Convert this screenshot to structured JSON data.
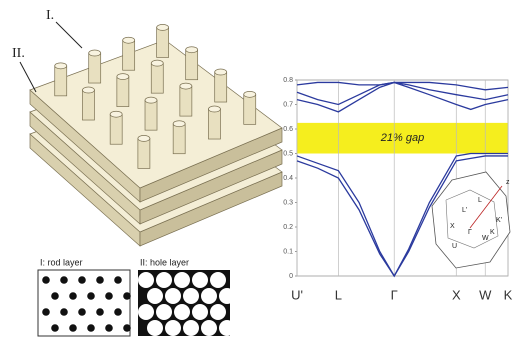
{
  "chart_data": {
    "type": "line",
    "x": [
      0,
      0.5,
      1,
      1.5,
      2,
      2.35,
      2.7,
      3.2,
      3.85,
      4.2,
      4.55,
      5.1
    ],
    "series": [
      {
        "color": "#2b3a9e",
        "values": [
          0.47,
          0.44,
          0.4,
          0.27,
          0.09,
          0,
          0.1,
          0.28,
          0.47,
          0.48,
          0.49,
          0.49
        ]
      },
      {
        "color": "#2b3a9e",
        "values": [
          0.49,
          0.46,
          0.43,
          0.3,
          0.1,
          0,
          0.11,
          0.3,
          0.49,
          0.5,
          0.5,
          0.5
        ]
      },
      {
        "color": "#2b3a9e",
        "values": [
          0.72,
          0.7,
          0.67,
          0.72,
          0.77,
          0.79,
          0.77,
          0.74,
          0.7,
          0.68,
          0.7,
          0.72
        ]
      },
      {
        "color": "#2b3a9e",
        "values": [
          0.75,
          0.72,
          0.7,
          0.74,
          0.78,
          0.79,
          0.78,
          0.76,
          0.74,
          0.73,
          0.72,
          0.74
        ]
      },
      {
        "color": "#2b3a9e",
        "values": [
          0.78,
          0.79,
          0.79,
          0.78,
          0.78,
          0.79,
          0.79,
          0.79,
          0.78,
          0.77,
          0.76,
          0.77
        ]
      }
    ],
    "xlim": [
      0,
      5.1
    ],
    "xticks": [
      {
        "value": 0,
        "label": "U'"
      },
      {
        "value": 1,
        "label": "L"
      },
      {
        "value": 2.35,
        "label": "Γ"
      },
      {
        "value": 3.85,
        "label": "X"
      },
      {
        "value": 4.55,
        "label": "W"
      },
      {
        "value": 5.1,
        "label": "K"
      }
    ],
    "ylim": [
      0,
      0.8
    ],
    "yticks": [
      0,
      0.1,
      0.2,
      0.3,
      0.4,
      0.5,
      0.6,
      0.7,
      0.8
    ],
    "gap": [
      0.5,
      0.625
    ],
    "gap_color": "#f5ee1e",
    "gap_label": "21% gap",
    "grid": true
  },
  "structure": {
    "labels": [
      "I.",
      "II."
    ]
  },
  "panels": [
    {
      "title": "I: rod layer"
    },
    {
      "title": "II: hole layer"
    }
  ],
  "inset": {
    "labels": [
      "z",
      "L",
      "Γ",
      "X",
      "U",
      "W",
      "K",
      "L'",
      "K'"
    ]
  }
}
